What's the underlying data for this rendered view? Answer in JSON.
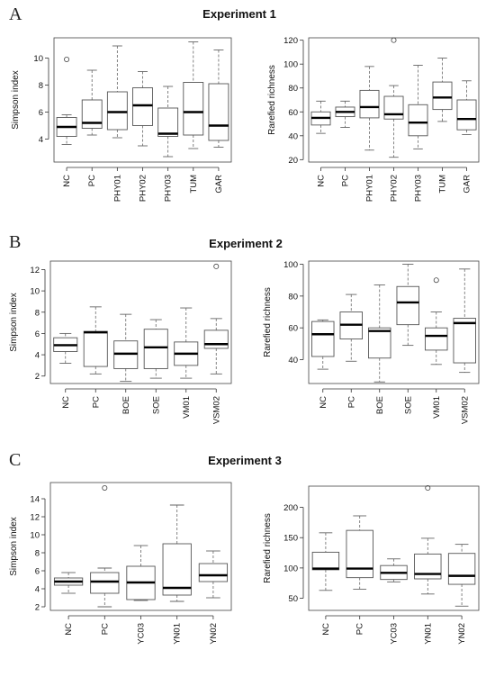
{
  "colors": {
    "box": "#555555",
    "median": "#000000",
    "whisker": "#666666",
    "frame": "#444444"
  },
  "experiments": [
    {
      "letter": "A",
      "title": "Experiment 1"
    },
    {
      "letter": "B",
      "title": "Experiment 2"
    },
    {
      "letter": "C",
      "title": "Experiment 3"
    }
  ],
  "chart_data": [
    {
      "type": "boxplot",
      "experiment": "Experiment 1",
      "ylabel": "Simpson index",
      "ylim": [
        2.3,
        11.5
      ],
      "yticks": [
        4,
        6,
        8,
        10
      ],
      "categories": [
        "NC",
        "PC",
        "PHY01",
        "PHY02",
        "PHY03",
        "TUM",
        "GAR"
      ],
      "boxes": [
        {
          "min": 3.6,
          "q1": 4.2,
          "median": 4.9,
          "q3": 5.6,
          "max": 5.8,
          "outliers": [
            9.9
          ]
        },
        {
          "min": 4.3,
          "q1": 4.8,
          "median": 5.2,
          "q3": 6.9,
          "max": 9.1,
          "outliers": []
        },
        {
          "min": 4.1,
          "q1": 4.7,
          "median": 6.0,
          "q3": 7.5,
          "max": 10.9,
          "outliers": []
        },
        {
          "min": 3.5,
          "q1": 5.0,
          "median": 6.5,
          "q3": 7.8,
          "max": 9.0,
          "outliers": []
        },
        {
          "min": 2.7,
          "q1": 4.2,
          "median": 4.4,
          "q3": 6.3,
          "max": 7.9,
          "outliers": []
        },
        {
          "min": 3.3,
          "q1": 4.3,
          "median": 6.0,
          "q3": 8.2,
          "max": 11.2,
          "outliers": []
        },
        {
          "min": 3.4,
          "q1": 3.9,
          "median": 5.0,
          "q3": 8.1,
          "max": 10.6,
          "outliers": []
        }
      ]
    },
    {
      "type": "boxplot",
      "experiment": "Experiment 1",
      "ylabel": "Rarefied richness",
      "ylim": [
        18,
        122
      ],
      "yticks": [
        20,
        40,
        60,
        80,
        100,
        120
      ],
      "categories": [
        "NC",
        "PC",
        "PHY01",
        "PHY02",
        "PHY03",
        "TUM",
        "GAR"
      ],
      "boxes": [
        {
          "min": 42,
          "q1": 49,
          "median": 55,
          "q3": 60,
          "max": 69,
          "outliers": []
        },
        {
          "min": 47,
          "q1": 56,
          "median": 60,
          "q3": 64,
          "max": 69,
          "outliers": []
        },
        {
          "min": 28,
          "q1": 55,
          "median": 64,
          "q3": 78,
          "max": 98,
          "outliers": []
        },
        {
          "min": 22,
          "q1": 54,
          "median": 58,
          "q3": 73,
          "max": 82,
          "outliers": [
            120
          ]
        },
        {
          "min": 29,
          "q1": 40,
          "median": 51,
          "q3": 66,
          "max": 99,
          "outliers": []
        },
        {
          "min": 52,
          "q1": 62,
          "median": 72,
          "q3": 85,
          "max": 105,
          "outliers": []
        },
        {
          "min": 41,
          "q1": 45,
          "median": 54,
          "q3": 70,
          "max": 86,
          "outliers": []
        }
      ]
    },
    {
      "type": "boxplot",
      "experiment": "Experiment 2",
      "ylabel": "Simpson index",
      "ylim": [
        1.3,
        12.8
      ],
      "yticks": [
        2,
        4,
        6,
        8,
        10,
        12
      ],
      "categories": [
        "NC",
        "PC",
        "BOE",
        "SOE",
        "VM01",
        "VSM02"
      ],
      "boxes": [
        {
          "min": 3.2,
          "q1": 4.3,
          "median": 4.9,
          "q3": 5.6,
          "max": 6.0,
          "outliers": []
        },
        {
          "min": 2.2,
          "q1": 2.9,
          "median": 6.1,
          "q3": 6.2,
          "max": 8.5,
          "outliers": []
        },
        {
          "min": 1.5,
          "q1": 2.7,
          "median": 4.1,
          "q3": 5.3,
          "max": 7.8,
          "outliers": []
        },
        {
          "min": 1.8,
          "q1": 2.7,
          "median": 4.7,
          "q3": 6.4,
          "max": 7.3,
          "outliers": []
        },
        {
          "min": 1.8,
          "q1": 3.0,
          "median": 4.1,
          "q3": 5.2,
          "max": 8.4,
          "outliers": []
        },
        {
          "min": 2.2,
          "q1": 4.6,
          "median": 5.0,
          "q3": 6.3,
          "max": 7.4,
          "outliers": [
            12.3
          ]
        }
      ]
    },
    {
      "type": "boxplot",
      "experiment": "Experiment 2",
      "ylabel": "Rarefied richness",
      "ylim": [
        25,
        102
      ],
      "yticks": [
        40,
        60,
        80,
        100
      ],
      "categories": [
        "NC",
        "PC",
        "BOE",
        "SOE",
        "VM01",
        "VSM02"
      ],
      "boxes": [
        {
          "min": 34,
          "q1": 42,
          "median": 56,
          "q3": 64,
          "max": 65,
          "outliers": []
        },
        {
          "min": 39,
          "q1": 53,
          "median": 62,
          "q3": 70,
          "max": 81,
          "outliers": []
        },
        {
          "min": 26,
          "q1": 41,
          "median": 58,
          "q3": 60,
          "max": 87,
          "outliers": []
        },
        {
          "min": 49,
          "q1": 62,
          "median": 76,
          "q3": 86,
          "max": 100,
          "outliers": []
        },
        {
          "min": 37,
          "q1": 46,
          "median": 55,
          "q3": 60,
          "max": 70,
          "outliers": [
            90
          ]
        },
        {
          "min": 32,
          "q1": 38,
          "median": 63,
          "q3": 66,
          "max": 97,
          "outliers": []
        }
      ]
    },
    {
      "type": "boxplot",
      "experiment": "Experiment 3",
      "ylabel": "Simpson index",
      "ylim": [
        1.6,
        15.8
      ],
      "yticks": [
        2,
        4,
        6,
        8,
        10,
        12,
        14
      ],
      "categories": [
        "NC",
        "PC",
        "YC03",
        "YN01",
        "YN02"
      ],
      "boxes": [
        {
          "min": 3.5,
          "q1": 4.4,
          "median": 4.8,
          "q3": 5.2,
          "max": 5.8,
          "outliers": []
        },
        {
          "min": 2.0,
          "q1": 3.5,
          "median": 4.8,
          "q3": 5.8,
          "max": 6.3,
          "outliers": [
            15.2
          ]
        },
        {
          "min": 2.7,
          "q1": 2.8,
          "median": 4.7,
          "q3": 6.5,
          "max": 8.8,
          "outliers": []
        },
        {
          "min": 2.6,
          "q1": 3.3,
          "median": 4.1,
          "q3": 9.0,
          "max": 13.3,
          "outliers": []
        },
        {
          "min": 3.0,
          "q1": 4.8,
          "median": 5.5,
          "q3": 6.8,
          "max": 8.2,
          "outliers": []
        }
      ]
    },
    {
      "type": "boxplot",
      "experiment": "Experiment 3",
      "ylabel": "Rarefied richness",
      "ylim": [
        30,
        235
      ],
      "yticks": [
        50,
        100,
        150,
        200
      ],
      "categories": [
        "NC",
        "PC",
        "YC03",
        "YN01",
        "YN02"
      ],
      "boxes": [
        {
          "min": 63,
          "q1": 97,
          "median": 99,
          "q3": 126,
          "max": 158,
          "outliers": []
        },
        {
          "min": 65,
          "q1": 84,
          "median": 99,
          "q3": 162,
          "max": 186,
          "outliers": []
        },
        {
          "min": 77,
          "q1": 81,
          "median": 92,
          "q3": 104,
          "max": 115,
          "outliers": []
        },
        {
          "min": 57,
          "q1": 82,
          "median": 90,
          "q3": 123,
          "max": 149,
          "outliers": [
            232
          ]
        },
        {
          "min": 37,
          "q1": 73,
          "median": 87,
          "q3": 124,
          "max": 139,
          "outliers": []
        }
      ]
    }
  ]
}
